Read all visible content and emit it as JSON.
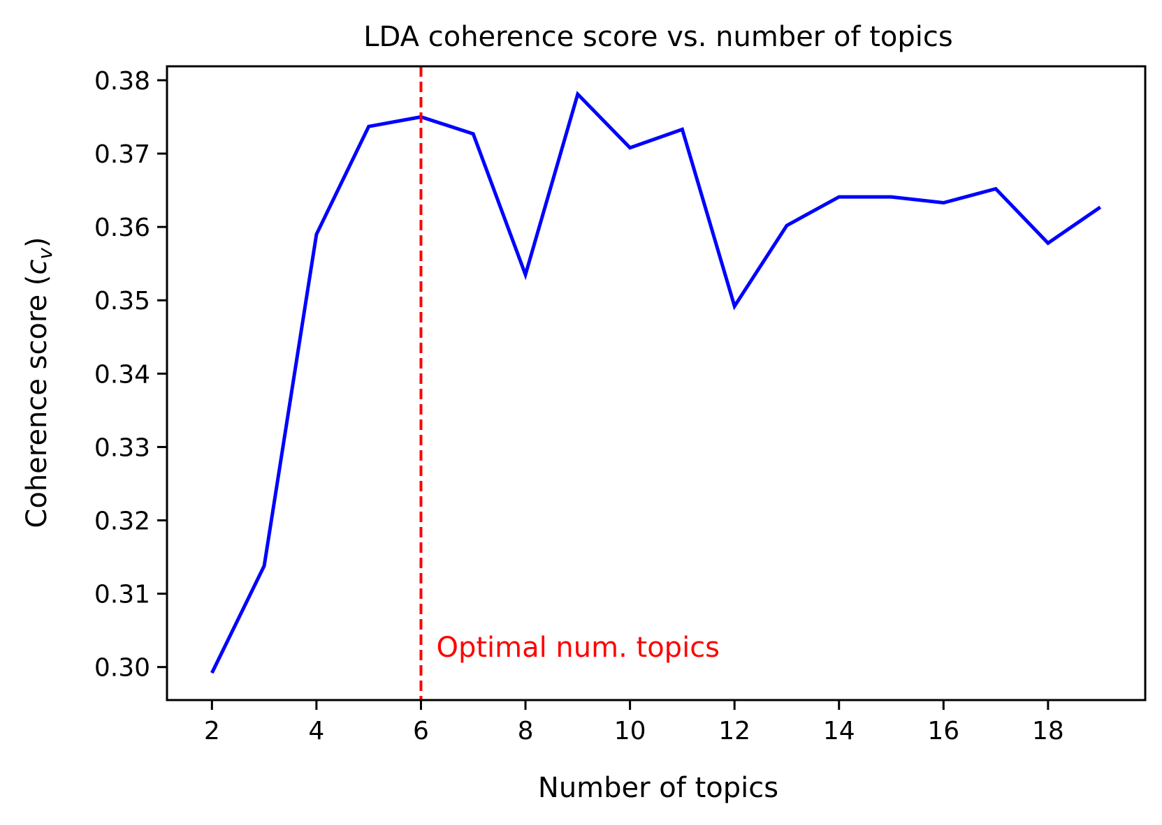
{
  "chart_data": {
    "type": "line",
    "title": "LDA coherence score vs. number of topics",
    "xlabel": "Number of topics",
    "ylabel": {
      "text": "Coherence score (",
      "symbol": "c",
      "subscript": "v",
      "close": ")"
    },
    "x": [
      2,
      3,
      4,
      5,
      6,
      7,
      8,
      9,
      10,
      11,
      12,
      13,
      14,
      15,
      16,
      17,
      18,
      19
    ],
    "series": [
      {
        "values": [
          0.2992,
          0.3138,
          0.359,
          0.3737,
          0.375,
          0.3727,
          0.3535,
          0.3781,
          0.3708,
          0.3733,
          0.3492,
          0.3602,
          0.3641,
          0.3641,
          0.3633,
          0.3652,
          0.3578,
          0.3627
        ],
        "color": "#0000ff"
      }
    ],
    "xlim": [
      1.14,
      19.86
    ],
    "ylim": [
      0.2955,
      0.3819
    ],
    "xticks": [
      "2",
      "4",
      "6",
      "8",
      "10",
      "12",
      "14",
      "16",
      "18"
    ],
    "yticks": [
      "0.30",
      "0.31",
      "0.32",
      "0.33",
      "0.34",
      "0.35",
      "0.36",
      "0.37",
      "0.38"
    ],
    "vline": {
      "x": 6,
      "color": "#ff0000",
      "style": "dashed",
      "label": "Optimal num. topics"
    },
    "grid": false,
    "legend": "none"
  }
}
